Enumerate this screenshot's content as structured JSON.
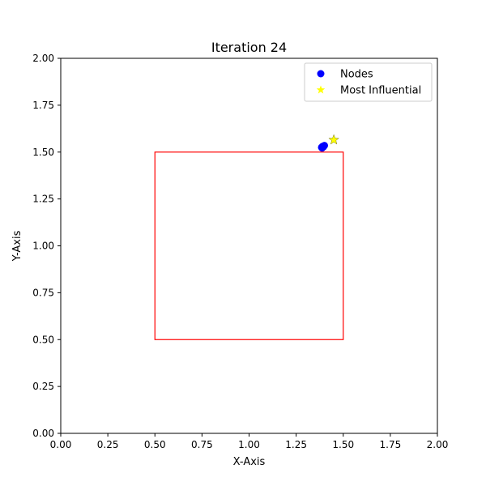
{
  "chart_data": {
    "type": "scatter",
    "title": "Iteration 24",
    "xlabel": "X-Axis",
    "ylabel": "Y-Axis",
    "xlim": [
      0,
      2
    ],
    "ylim": [
      0,
      2
    ],
    "x_ticks": [
      "0.00",
      "0.25",
      "0.50",
      "0.75",
      "1.00",
      "1.25",
      "1.50",
      "1.75",
      "2.00"
    ],
    "y_ticks": [
      "0.00",
      "0.25",
      "0.50",
      "0.75",
      "1.00",
      "1.25",
      "1.50",
      "1.75",
      "2.00"
    ],
    "grid": false,
    "legend_position": "top-right",
    "region": {
      "x0": 0.5,
      "y0": 0.5,
      "x1": 1.5,
      "y1": 1.5,
      "color": "#ff0000"
    },
    "series": [
      {
        "name": "Nodes",
        "marker": "circle",
        "color": "#0000ff",
        "points": [
          {
            "x": 1.385,
            "y": 1.525
          },
          {
            "x": 1.39,
            "y": 1.53
          },
          {
            "x": 1.395,
            "y": 1.528
          },
          {
            "x": 1.4,
            "y": 1.535
          },
          {
            "x": 1.388,
            "y": 1.522
          }
        ]
      },
      {
        "name": "Most Influential",
        "marker": "star",
        "color": "#ffff00",
        "points": [
          {
            "x": 1.45,
            "y": 1.565
          }
        ]
      }
    ]
  }
}
